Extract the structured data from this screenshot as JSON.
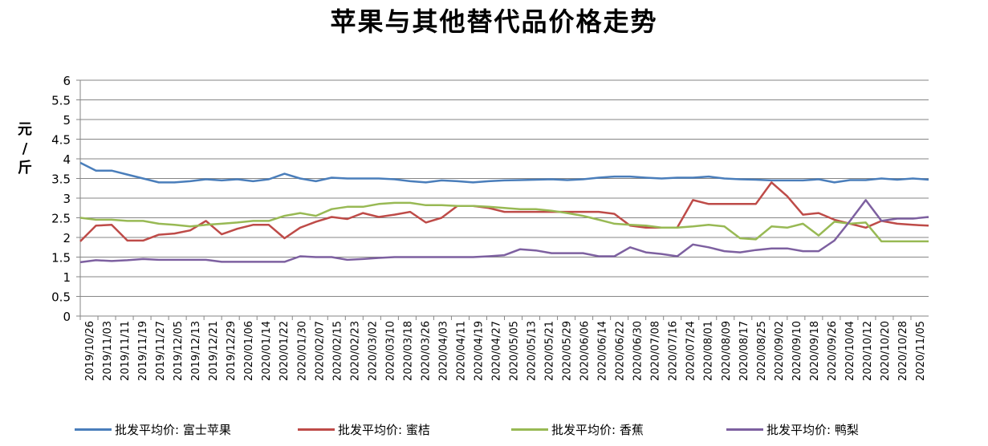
{
  "chart_data": {
    "type": "line",
    "title": "苹果与其他替代品价格走势",
    "ylabel": "元/斤",
    "xlabel": "",
    "ylim": [
      0,
      6
    ],
    "y_ticks": [
      "0",
      "0.5",
      "1",
      "1.5",
      "2",
      "2.5",
      "3",
      "3.5",
      "4",
      "4.5",
      "5",
      "5.5",
      "6"
    ],
    "grid": true,
    "legend_position": "bottom",
    "x_tick_labels": [
      "2019/10/26",
      "2019/11/03",
      "2019/11/11",
      "2019/11/19",
      "2019/11/27",
      "2019/12/05",
      "2019/12/13",
      "2019/12/21",
      "2019/12/29",
      "2020/01/06",
      "2020/01/14",
      "2020/01/22",
      "2020/01/30",
      "2020/02/07",
      "2020/02/15",
      "2020/02/23",
      "2020/03/02",
      "2020/03/10",
      "2020/03/18",
      "2020/03/26",
      "2020/04/03",
      "2020/04/11",
      "2020/04/19",
      "2020/04/27",
      "2020/05/05",
      "2020/05/13",
      "2020/05/21",
      "2020/05/29",
      "2020/06/06",
      "2020/06/14",
      "2020/06/22",
      "2020/06/30",
      "2020/07/08",
      "2020/07/16",
      "2020/07/24",
      "2020/08/01",
      "2020/08/09",
      "2020/08/17",
      "2020/08/25",
      "2020/09/02",
      "2020/09/10",
      "2020/09/18",
      "2020/09/26",
      "2020/10/04",
      "2020/10/12",
      "2020/10/20",
      "2020/10/28",
      "2020/11/05"
    ],
    "series": [
      {
        "name": "批发平均价: 富士苹果",
        "color": "#4a7ebb",
        "values": [
          3.9,
          3.7,
          3.7,
          3.6,
          3.5,
          3.4,
          3.4,
          3.43,
          3.48,
          3.45,
          3.48,
          3.43,
          3.48,
          3.62,
          3.5,
          3.43,
          3.52,
          3.5,
          3.5,
          3.5,
          3.48,
          3.43,
          3.4,
          3.45,
          3.43,
          3.4,
          3.43,
          3.45,
          3.46,
          3.47,
          3.48,
          3.46,
          3.48,
          3.52,
          3.55,
          3.55,
          3.52,
          3.5,
          3.52,
          3.52,
          3.55,
          3.5,
          3.48,
          3.47,
          3.45,
          3.45,
          3.45,
          3.48,
          3.4,
          3.46,
          3.46,
          3.5,
          3.47,
          3.5,
          3.47
        ]
      },
      {
        "name": "批发平均价: 蜜桔",
        "color": "#be4b48",
        "values": [
          1.9,
          2.3,
          2.32,
          1.92,
          1.92,
          2.07,
          2.1,
          2.18,
          2.42,
          2.08,
          2.22,
          2.32,
          2.32,
          1.98,
          2.25,
          2.4,
          2.52,
          2.47,
          2.62,
          2.52,
          2.58,
          2.65,
          2.38,
          2.5,
          2.8,
          2.8,
          2.75,
          2.65,
          2.65,
          2.65,
          2.65,
          2.65,
          2.65,
          2.65,
          2.6,
          2.3,
          2.25,
          2.25,
          2.25,
          2.95,
          2.85,
          2.85,
          2.85,
          2.85,
          3.4,
          3.05,
          2.58,
          2.62,
          2.45,
          2.35,
          2.25,
          2.42,
          2.35,
          2.32,
          2.3
        ]
      },
      {
        "name": "批发平均价: 香蕉",
        "color": "#98b954",
        "values": [
          2.5,
          2.45,
          2.45,
          2.42,
          2.42,
          2.35,
          2.32,
          2.28,
          2.32,
          2.35,
          2.38,
          2.42,
          2.42,
          2.55,
          2.62,
          2.55,
          2.72,
          2.78,
          2.78,
          2.85,
          2.88,
          2.88,
          2.82,
          2.82,
          2.8,
          2.8,
          2.78,
          2.75,
          2.72,
          2.72,
          2.68,
          2.62,
          2.55,
          2.45,
          2.35,
          2.32,
          2.3,
          2.25,
          2.25,
          2.28,
          2.32,
          2.28,
          1.98,
          1.95,
          2.28,
          2.25,
          2.35,
          2.05,
          2.4,
          2.35,
          2.38,
          1.9,
          1.9,
          1.9,
          1.9
        ]
      },
      {
        "name": "批发平均价: 鸭梨",
        "color": "#7d60a0",
        "values": [
          1.37,
          1.42,
          1.4,
          1.42,
          1.45,
          1.43,
          1.43,
          1.43,
          1.43,
          1.38,
          1.38,
          1.38,
          1.38,
          1.38,
          1.52,
          1.5,
          1.5,
          1.43,
          1.45,
          1.48,
          1.5,
          1.5,
          1.5,
          1.5,
          1.5,
          1.5,
          1.52,
          1.55,
          1.7,
          1.67,
          1.6,
          1.6,
          1.6,
          1.52,
          1.52,
          1.75,
          1.62,
          1.58,
          1.52,
          1.82,
          1.75,
          1.65,
          1.62,
          1.68,
          1.72,
          1.72,
          1.65,
          1.65,
          1.92,
          2.42,
          2.95,
          2.42,
          2.48,
          2.48,
          2.52
        ]
      }
    ]
  }
}
